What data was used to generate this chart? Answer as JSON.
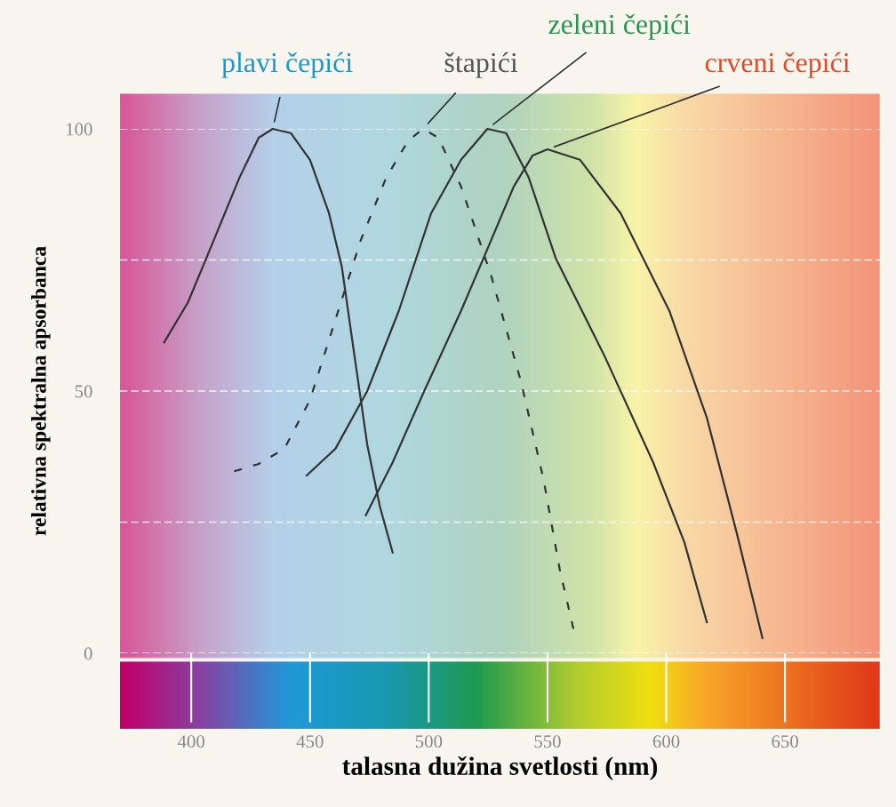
{
  "chart_data": {
    "type": "line",
    "xlabel": "talasna dužina svetlosti (nm)",
    "ylabel": "relativna spektralna apsorbanca",
    "xlim": [
      370,
      690
    ],
    "xticks": [
      400,
      450,
      500,
      550,
      600,
      650
    ],
    "ylim": [
      0,
      100
    ],
    "yticks": [
      0,
      {
        "value": 25,
        "label": null
      },
      50,
      {
        "value": 75,
        "label": null
      },
      100
    ],
    "grid": "y",
    "series": [
      {
        "name": "plavi čepići",
        "color": "#333333",
        "line_style": "solid",
        "x": [
          388.6,
          398.6,
          409.5,
          420.3,
          428.4,
          434.3,
          441.9,
          450,
          458,
          463.4,
          468.7,
          474.1,
          479.4,
          484.8
        ],
        "values": [
          59.3,
          66.9,
          78.8,
          90.7,
          98.3,
          100,
          99.2,
          94.1,
          83.9,
          73.7,
          56.8,
          39.8,
          28,
          19.2
        ]
      },
      {
        "name": "štapići",
        "color": "#333333",
        "line_style": "dashed",
        "x": [
          418.1,
          428.4,
          439.2,
          450,
          460.7,
          471.4,
          482.1,
          491.4,
          497.6,
          504.1,
          513.6,
          526.3,
          538.9,
          548.4,
          555.1,
          561.3
        ],
        "values": [
          34.7,
          36.1,
          39,
          48.3,
          63.6,
          78.8,
          90.7,
          97.8,
          100,
          98.3,
          89,
          72,
          51.7,
          33,
          16.1,
          3.9
        ]
      },
      {
        "name": "zeleni čepići",
        "color": "#333333",
        "line_style": "solid",
        "x": [
          448.6,
          460.7,
          474.1,
          487.4,
          501,
          513.6,
          524.7,
          532.6,
          542.1,
          553.4,
          573.9,
          594.5,
          607.6,
          617.1
        ],
        "values": [
          33.9,
          39,
          50,
          65.3,
          83.9,
          94.1,
          100,
          99.2,
          90.7,
          75.4,
          56.8,
          36.4,
          21.2,
          5.9
        ]
      },
      {
        "name": "crveni čepići",
        "color": "#333333",
        "line_style": "solid",
        "x": [
          473.5,
          484.8,
          498.1,
          513.6,
          526.3,
          535.8,
          543.7,
          550,
          563.7,
          580.8,
          601.3,
          617.1,
          629.7,
          640.5
        ],
        "values": [
          26.3,
          36.4,
          50,
          65.3,
          78.8,
          89,
          94.9,
          96.1,
          94.1,
          83.9,
          65.3,
          44.9,
          22.9,
          2.9
        ]
      }
    ]
  }
}
